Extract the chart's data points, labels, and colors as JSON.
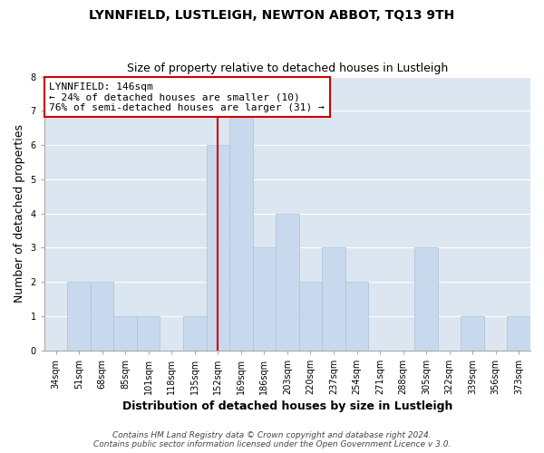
{
  "title": "LYNNFIELD, LUSTLEIGH, NEWTON ABBOT, TQ13 9TH",
  "subtitle": "Size of property relative to detached houses in Lustleigh",
  "xlabel": "Distribution of detached houses by size in Lustleigh",
  "ylabel": "Number of detached properties",
  "bar_labels": [
    "34sqm",
    "51sqm",
    "68sqm",
    "85sqm",
    "101sqm",
    "118sqm",
    "135sqm",
    "152sqm",
    "169sqm",
    "186sqm",
    "203sqm",
    "220sqm",
    "237sqm",
    "254sqm",
    "271sqm",
    "288sqm",
    "305sqm",
    "322sqm",
    "339sqm",
    "356sqm",
    "373sqm"
  ],
  "bar_values": [
    0,
    2,
    2,
    1,
    1,
    0,
    1,
    6,
    7,
    3,
    4,
    2,
    3,
    2,
    0,
    0,
    3,
    0,
    1,
    0,
    1
  ],
  "bar_color": "#c9d9ed",
  "bar_edge_color": "#a8c0dc",
  "vline_x": 7,
  "vline_color": "#cc0000",
  "annotation_title": "LYNNFIELD: 146sqm",
  "annotation_line1": "← 24% of detached houses are smaller (10)",
  "annotation_line2": "76% of semi-detached houses are larger (31) →",
  "annotation_box_color": "#ffffff",
  "annotation_box_edge": "#cc0000",
  "ylim": [
    0,
    8
  ],
  "yticks": [
    0,
    1,
    2,
    3,
    4,
    5,
    6,
    7,
    8
  ],
  "grid_color": "#ffffff",
  "bg_color": "#dce6f0",
  "fig_bg_color": "#ffffff",
  "footer1": "Contains HM Land Registry data © Crown copyright and database right 2024.",
  "footer2": "Contains public sector information licensed under the Open Government Licence v 3.0.",
  "title_fontsize": 10,
  "subtitle_fontsize": 9,
  "axis_label_fontsize": 9,
  "tick_fontsize": 7,
  "annotation_fontsize": 8,
  "footer_fontsize": 6.5
}
